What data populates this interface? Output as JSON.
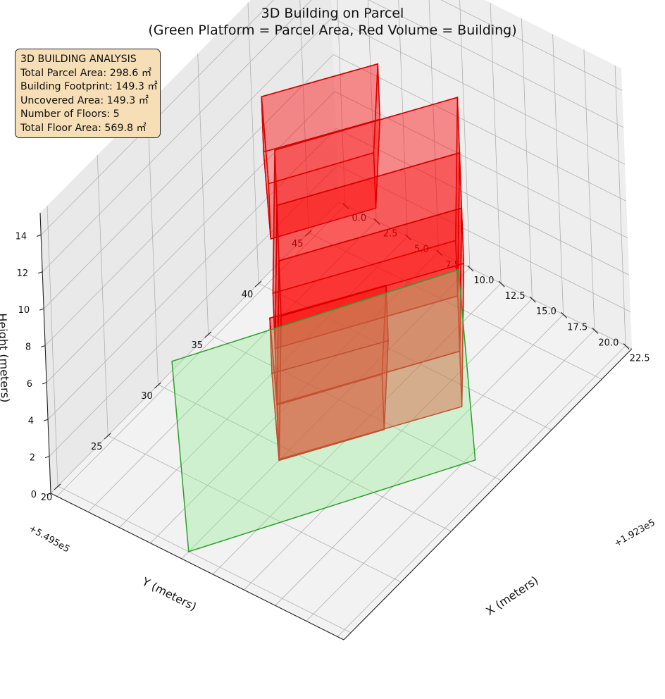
{
  "title": "3D Building on Parcel",
  "subtitle": "(Green Platform = Parcel Area, Red Volume = Building)",
  "info_box": {
    "heading": "3D BUILDING ANALYSIS",
    "lines": [
      "Total Parcel Area: 298.6 ㎡",
      "Building Footprint: 149.3 ㎡",
      "Uncovered Area: 149.3 ㎡",
      "Number of Floors: 5",
      "Total Floor Area: 569.8 ㎡"
    ]
  },
  "colors": {
    "parcel_fill": "#90ee90",
    "parcel_edge": "#2ca02c",
    "building_fill": "#ff0000",
    "building_edge": "#d40000",
    "info_box_bg": "#f6deb6"
  },
  "chart_data": {
    "type": "3d-polygons",
    "xlabel": "X (meters)",
    "ylabel": "Y (meters)",
    "zlabel": "Height (meters)",
    "x_offset_label": "+1.923e5",
    "y_offset_label": "+5.495e5",
    "x_ticks": [
      0.0,
      2.5,
      5.0,
      7.5,
      10.0,
      12.5,
      15.0,
      17.5,
      20.0,
      22.5
    ],
    "x_tick_labels": [
      "0.0",
      "2.5",
      "5.0",
      "7.5",
      "10.0",
      "12.5",
      "15.0",
      "17.5",
      "20.0",
      "22.5"
    ],
    "y_ticks": [
      20,
      25,
      30,
      35,
      40,
      45
    ],
    "y_tick_labels": [
      "20",
      "25",
      "30",
      "35",
      "40",
      "45"
    ],
    "z_ticks": [
      0,
      2,
      4,
      6,
      8,
      10,
      12,
      14
    ],
    "z_tick_labels": [
      "0",
      "2",
      "4",
      "6",
      "8",
      "10",
      "12",
      "14"
    ],
    "xlim": [
      -0.5,
      23.0
    ],
    "ylim": [
      19.3,
      48.0
    ],
    "zlim": [
      0,
      15.2
    ],
    "grid": true,
    "view": {
      "elev": 20,
      "azim": 45
    },
    "parcel": {
      "z": 0,
      "polygon": [
        [
          10.0,
          20.0
        ],
        [
          20.5,
          35.5
        ],
        [
          9.5,
          47.5
        ],
        [
          -1.0,
          32.0
        ]
      ]
    },
    "floors": [
      {
        "floor": 1,
        "z_base": 0,
        "z_top": 3,
        "polygon": [
          [
            10.0,
            29.0
          ],
          [
            14.0,
            34.5
          ],
          [
            9.5,
            40.5
          ],
          [
            5.0,
            34.5
          ]
        ]
      },
      {
        "floor": 2,
        "z_base": 3,
        "z_top": 6,
        "polygon": [
          [
            13.0,
            25.5
          ],
          [
            20.0,
            35.0
          ],
          [
            12.5,
            44.5
          ],
          [
            5.5,
            35.0
          ]
        ]
      },
      {
        "floor": 3,
        "z_base": 6,
        "z_top": 9,
        "polygon": [
          [
            13.0,
            25.5
          ],
          [
            20.0,
            35.0
          ],
          [
            12.5,
            44.5
          ],
          [
            5.5,
            35.0
          ]
        ]
      },
      {
        "floor": 4,
        "z_base": 9,
        "z_top": 12,
        "polygon": [
          [
            13.0,
            25.5
          ],
          [
            20.0,
            35.0
          ],
          [
            12.5,
            44.5
          ],
          [
            5.5,
            35.0
          ]
        ]
      },
      {
        "floor": 5,
        "z_base": 12,
        "z_top": 15,
        "polygon": [
          [
            10.0,
            29.0
          ],
          [
            14.0,
            34.5
          ],
          [
            9.5,
            40.5
          ],
          [
            5.0,
            34.5
          ]
        ]
      }
    ]
  }
}
